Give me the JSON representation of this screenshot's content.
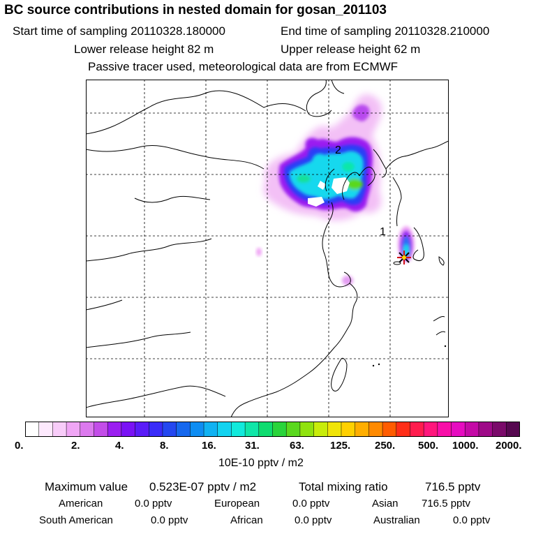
{
  "header": {
    "title": "BC  source contributions in nested domain for gosan_201103",
    "start_time": "Start time of sampling 20110328.180000",
    "end_time": "End time of sampling 20110328.210000",
    "lower_release": "Lower release height   82 m",
    "upper_release": "Upper release height   62 m",
    "tracer_note": "Passive tracer used, meteorological data are from ECMWF"
  },
  "map": {
    "labels": {
      "hour_1": "1",
      "hour_2": "2"
    }
  },
  "colorbar": {
    "ticks": [
      "0.",
      "2.",
      "4.",
      "8.",
      "16.",
      "31.",
      "63.",
      "125.",
      "250.",
      "500.",
      "1000.",
      "2000."
    ],
    "unit": "10E-10 pptv / m2",
    "colors": [
      "#ffffff",
      "#fde9fd",
      "#f8ccf9",
      "#f0a6f5",
      "#dc7aee",
      "#c34de8",
      "#9b1ff0",
      "#7a12f5",
      "#5a1cf8",
      "#3a2cf8",
      "#2447f0",
      "#1668ee",
      "#0e8df2",
      "#10b2f2",
      "#13d3f0",
      "#12eadc",
      "#10e6a8",
      "#0fdc70",
      "#2ad43b",
      "#5ad81e",
      "#90e20f",
      "#c8ec0a",
      "#f0e408",
      "#ffd000",
      "#ffae00",
      "#ff8a00",
      "#ff5c00",
      "#ff2e18",
      "#ff1c4e",
      "#ff167c",
      "#f80fa8",
      "#e60cc0",
      "#c40aa6",
      "#9e0a88",
      "#7a0a6a",
      "#560850"
    ]
  },
  "summary": {
    "max_label": "Maximum value",
    "max_value": "0.523E-07 pptv / m2",
    "total_label": "Total mixing ratio",
    "total_value": "716.5 pptv",
    "sources": {
      "american_label": "American",
      "american_value": "0.0 pptv",
      "european_label": "European",
      "european_value": "0.0 pptv",
      "asian_label": "Asian",
      "asian_value": "716.5 pptv",
      "south_american_label": "South American",
      "south_american_value": "0.0 pptv",
      "african_label": "African",
      "african_value": "0.0 pptv",
      "australian_label": "Australian",
      "australian_value": "0.0 pptv"
    }
  }
}
